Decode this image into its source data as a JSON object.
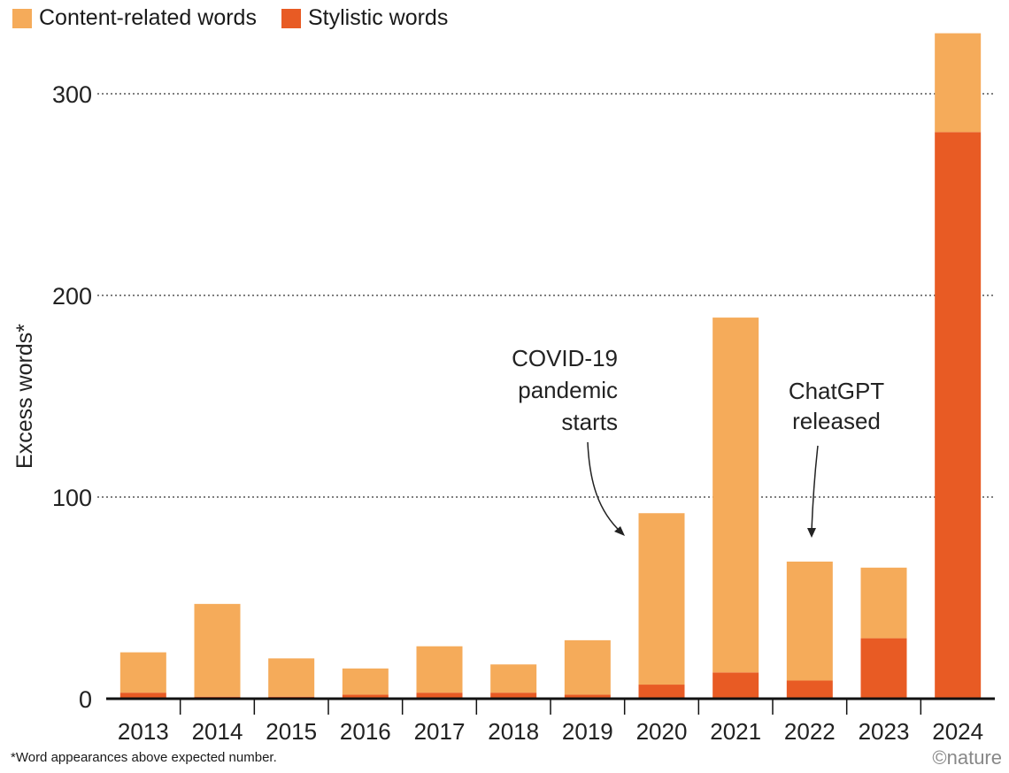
{
  "chart_data": {
    "type": "bar",
    "stacked": true,
    "categories": [
      "2013",
      "2014",
      "2015",
      "2016",
      "2017",
      "2018",
      "2019",
      "2020",
      "2021",
      "2022",
      "2023",
      "2024"
    ],
    "series": [
      {
        "name": "Stylistic words",
        "color": "#e85b24",
        "values": [
          3,
          1,
          1,
          2,
          3,
          3,
          2,
          7,
          13,
          9,
          30,
          281
        ]
      },
      {
        "name": "Content-related words",
        "color": "#f5ab5a",
        "values": [
          20,
          46,
          19,
          13,
          23,
          14,
          27,
          85,
          176,
          59,
          35,
          49
        ]
      }
    ],
    "ylabel": "Excess words*",
    "ylim": [
      0,
      330
    ],
    "yticks": [
      0,
      100,
      200,
      300
    ],
    "grid": "horizontal dotted",
    "legend": "top-left",
    "annotations": [
      {
        "key": "covid",
        "lines": [
          "COVID-19",
          "pandemic",
          "starts"
        ],
        "category": "2020"
      },
      {
        "key": "chatgpt",
        "lines": [
          "ChatGPT",
          "released"
        ],
        "category": "2022"
      }
    ]
  },
  "legend": {
    "content_label": "Content-related words",
    "stylistic_label": "Stylistic words"
  },
  "footnote": "*Word appearances above expected number.",
  "credit": "©nature"
}
